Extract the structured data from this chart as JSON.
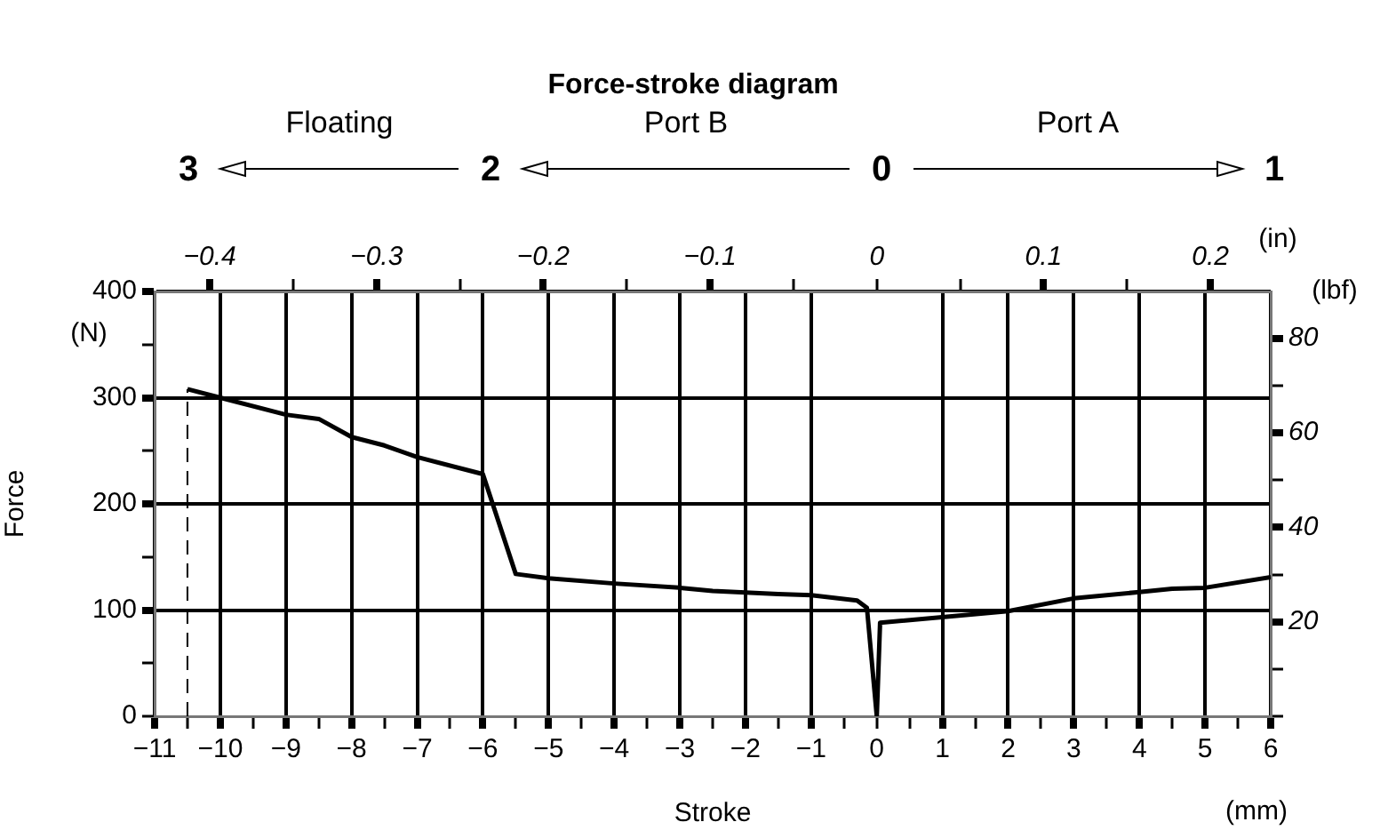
{
  "chart_data": {
    "type": "line",
    "title": "Force-stroke diagram",
    "xlabel": "Stroke",
    "ylabel": "Force",
    "x2label": "(in)",
    "y2label": "(lbf)",
    "annotations": [
      "3",
      "2",
      "0",
      "1",
      "Floating",
      "Port B",
      "Port A",
      "(N)",
      "(mm)"
    ],
    "series": [
      {
        "color": "#000000",
        "x": [
          -10.5,
          -10,
          -9,
          -8.5,
          -8,
          -7.5,
          -7,
          -6,
          -5.5,
          -5,
          -4,
          -3,
          -2.5,
          -1.5,
          -1,
          -0.3,
          -0.15,
          0,
          0.05,
          2,
          3,
          4,
          4.5,
          5,
          6
        ],
        "values": [
          308,
          300,
          284,
          280,
          263,
          255,
          244,
          228,
          134,
          130,
          125,
          121,
          118,
          115,
          114,
          109,
          102,
          0,
          88,
          99,
          111,
          117,
          120,
          121,
          131
        ]
      },
      {
        "color": "#000000",
        "line_style": "dashed",
        "x": [
          -10.5,
          -10.5
        ],
        "values": [
          0,
          308
        ]
      }
    ],
    "xlim": [
      -11,
      6
    ],
    "xticks": [
      -11,
      {
        "value": -10.5,
        "label": null
      },
      -10,
      {
        "value": -9.5,
        "label": null
      },
      -9,
      {
        "value": -8.5,
        "label": null
      },
      -8,
      {
        "value": -7.5,
        "label": null
      },
      -7,
      {
        "value": -6.5,
        "label": null
      },
      -6,
      {
        "value": -5.5,
        "label": null
      },
      -5,
      {
        "value": -4.5,
        "label": null
      },
      -4,
      {
        "value": -3.5,
        "label": null
      },
      -3,
      {
        "value": -2.5,
        "label": null
      },
      -2,
      {
        "value": -1.5,
        "label": null
      },
      -1,
      {
        "value": -0.5,
        "label": null
      },
      0,
      {
        "value": 0.5,
        "label": null
      },
      1,
      {
        "value": 1.5,
        "label": null
      },
      2,
      {
        "value": 2.5,
        "label": null
      },
      3,
      {
        "value": 3.5,
        "label": null
      },
      4,
      {
        "value": 4.5,
        "label": null
      },
      5,
      {
        "value": 5.5,
        "label": null
      },
      6
    ],
    "ylim": [
      0,
      400
    ],
    "yticks": [
      0,
      {
        "value": 50,
        "label": null
      },
      100,
      {
        "value": 150,
        "label": null
      },
      200,
      {
        "value": 250,
        "label": null
      },
      300,
      {
        "value": 350,
        "label": null
      },
      400
    ],
    "x2lim": [
      -0.4331,
      0.2362
    ],
    "x2ticks": [
      -0.4,
      {
        "value": -0.35,
        "label": null
      },
      -0.3,
      {
        "value": -0.25,
        "label": null
      },
      -0.2,
      {
        "value": -0.15,
        "label": null
      },
      -0.1,
      {
        "value": -0.05,
        "label": null
      },
      0,
      {
        "value": 0.05,
        "label": null
      },
      0.1,
      {
        "value": 0.15,
        "label": null
      },
      0.2
    ],
    "y2lim": [
      0,
      89.92
    ],
    "y2ticks": [
      {
        "value": 0,
        "label": null
      },
      {
        "value": 10,
        "label": null
      },
      20,
      {
        "value": 30,
        "label": null
      },
      40,
      {
        "value": 50,
        "label": null
      },
      60,
      {
        "value": 70,
        "label": null
      },
      80
    ],
    "grid": true,
    "legend": false,
    "marker": "none",
    "line_style": "solid"
  }
}
